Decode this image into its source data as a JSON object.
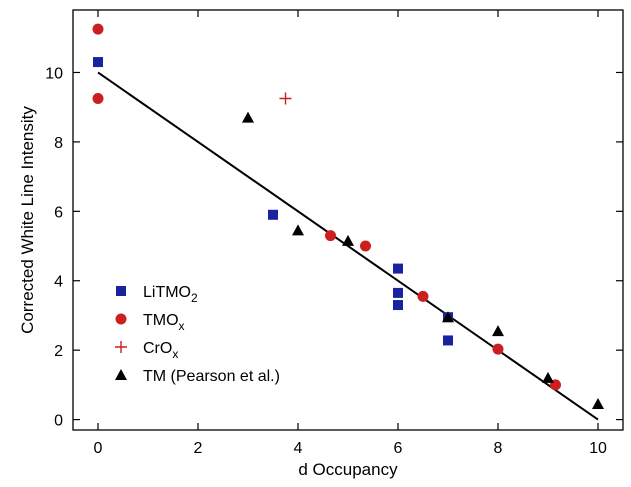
{
  "chart_data": {
    "type": "scatter",
    "xlabel": "d Occupancy",
    "ylabel": "Corrected White Line Intensity",
    "xlim": [
      -0.5,
      10.5
    ],
    "ylim": [
      -0.3,
      11.8
    ],
    "xticks": [
      0,
      2,
      4,
      6,
      8,
      10
    ],
    "yticks": [
      0,
      2,
      4,
      6,
      8,
      10
    ],
    "grid": false,
    "legend_position": "bottom-left",
    "series": [
      {
        "name": "LiTMO",
        "name_subscript": "2",
        "marker": "square",
        "color": "#1a22a0",
        "points": [
          [
            0,
            10.3
          ],
          [
            3.5,
            5.9
          ],
          [
            6,
            4.35
          ],
          [
            6,
            3.65
          ],
          [
            6,
            3.3
          ],
          [
            7,
            2.95
          ],
          [
            7,
            2.28
          ]
        ]
      },
      {
        "name": "TMO",
        "name_subscript": "x",
        "marker": "circle",
        "color": "#cc1f1f",
        "points": [
          [
            0,
            11.25
          ],
          [
            0,
            9.25
          ],
          [
            4.65,
            5.3
          ],
          [
            5.35,
            5.0
          ],
          [
            6.5,
            3.55
          ],
          [
            8,
            2.03
          ],
          [
            9.15,
            1.0
          ]
        ]
      },
      {
        "name": "CrO",
        "name_subscript": "x",
        "marker": "plus",
        "color": "#cc1f1f",
        "points": [
          [
            3.75,
            9.25
          ]
        ]
      },
      {
        "name": "TM (Pearson et al.)",
        "marker": "triangle",
        "color": "#000000",
        "points": [
          [
            3,
            8.7
          ],
          [
            4,
            5.45
          ],
          [
            5,
            5.15
          ],
          [
            7,
            2.95
          ],
          [
            8,
            2.55
          ],
          [
            9,
            1.2
          ],
          [
            10,
            0.45
          ]
        ]
      }
    ],
    "fit_line": {
      "x": [
        0,
        10
      ],
      "y": [
        10.0,
        0.0
      ],
      "color": "#000000"
    }
  }
}
